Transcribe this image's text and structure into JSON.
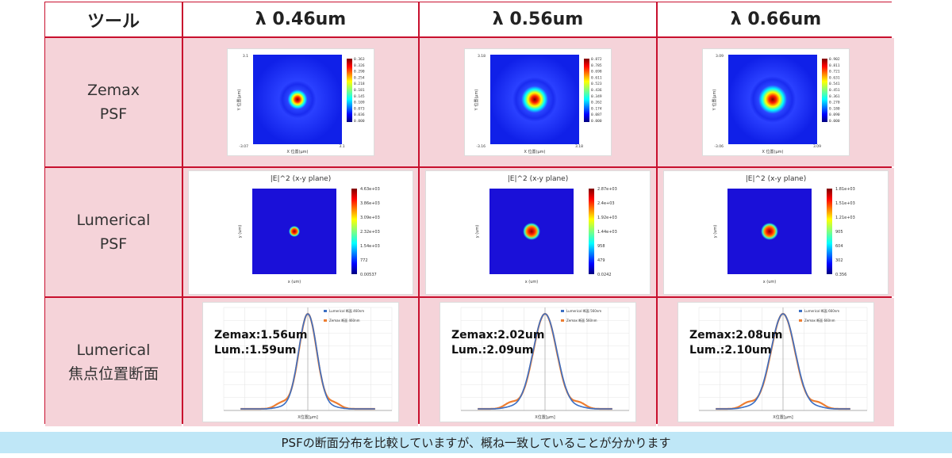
{
  "table": {
    "header": {
      "tool": "ツール",
      "col1": "λ 0.46um",
      "col2": "λ 0.56um",
      "col3": "λ  0.66um"
    },
    "rows": [
      {
        "label": "Zemax\nPSF"
      },
      {
        "label": "Lumerical\nPSF"
      },
      {
        "label": "Lumerical\n焦点位置断面"
      }
    ],
    "zemax": [
      {
        "top": "3.1",
        "ticks": [
          "0.363",
          "0.326",
          "0.290",
          "0.254",
          "0.218",
          "0.181",
          "0.145",
          "0.109",
          "0.073",
          "0.036",
          "0.000"
        ],
        "xlabel": "X 位置(μm)",
        "ylabel": "Y 位置(μm)",
        "bl": "-3.07",
        "br": "3.1"
      },
      {
        "top": "3.18",
        "ticks": [
          "0.872",
          "0.785",
          "0.698",
          "0.611",
          "0.523",
          "0.436",
          "0.349",
          "0.262",
          "0.174",
          "0.087",
          "0.000"
        ],
        "xlabel": "X 位置(μm)",
        "ylabel": "Y 位置(μm)",
        "bl": "-3.16",
        "br": "3.18"
      },
      {
        "top": "3.09",
        "ticks": [
          "0.902",
          "0.811",
          "0.721",
          "0.631",
          "0.541",
          "0.451",
          "0.361",
          "0.270",
          "0.180",
          "0.090",
          "0.000"
        ],
        "xlabel": "X 位置(μm)",
        "ylabel": "Y 位置(μm)",
        "bl": "-3.06",
        "br": "3.09"
      }
    ],
    "lumerical": [
      {
        "title": "|E|^2 (x-y plane)",
        "ticks": [
          "4.63e+03",
          "3.86e+03",
          "3.09e+03",
          "2.32e+03",
          "1.54e+03",
          "772",
          "0.00537"
        ],
        "xlabel": "x (um)",
        "ylabel": "y (um)"
      },
      {
        "title": "|E|^2 (x-y plane)",
        "ticks": [
          "2.87e+03",
          "2.4e+03",
          "1.92e+03",
          "1.44e+03",
          "958",
          "479",
          "0.0242"
        ],
        "xlabel": "x (um)",
        "ylabel": "y (um)"
      },
      {
        "title": "|E|^2 (x-y plane)",
        "ticks": [
          "1.81e+03",
          "1.51e+03",
          "1.21e+03",
          "905",
          "604",
          "302",
          "0.356"
        ],
        "xlabel": "x (um)",
        "ylabel": "y (um)"
      }
    ],
    "profiles": [
      {
        "annotation": "Zemax:1.56um\nLum.:1.59um",
        "legend1": "Lumerical 断面 460nm",
        "legend2": "Zemax 断面 460nm",
        "xlabel": "X位置[μm]"
      },
      {
        "annotation": "Zemax:2.02um\nLum.:2.09um",
        "legend1": "Lumerical 断面 560nm",
        "legend2": "Zemax 断面 560nm",
        "xlabel": "X位置[μm]"
      },
      {
        "annotation": "Zemax:2.08um\nLum.:2.10um",
        "legend1": "Lumerical 断面 660nm",
        "legend2": "Zemax 断面 660nm",
        "xlabel": "X位置[μm]"
      }
    ]
  },
  "footer": {
    "text": "PSFの断面分布を比較していますが、概ね一致していることが分かります"
  },
  "colors": {
    "border": "#c8102e",
    "rowFill": "#f5d3d9",
    "footerFill": "#bfe7f7",
    "lumericalLine": "#3b6fc4",
    "zemaxLine": "#ed7d31"
  }
}
